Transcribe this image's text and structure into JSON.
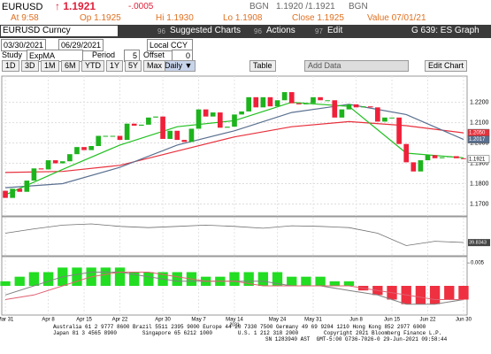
{
  "header": {
    "ticker": "EURUSD",
    "last": "↑ 1.1921",
    "change": "-.0005",
    "source1": "BGN",
    "bid_ask": "1.1920 /1.1921",
    "source2": "BGN",
    "time": "At 9:58",
    "open": "Op 1.1925",
    "high": "Hi 1.1930",
    "low": "Lo 1.1908",
    "close": "Close 1.1925",
    "value": "Value 07/01/21"
  },
  "toolbar": {
    "security": "EURUSD Curncy",
    "menu1_key": "96",
    "menu1": "Suggested Charts",
    "menu2_key": "96",
    "menu2": "Actions",
    "menu3_key": "97",
    "menu3": "Edit",
    "page": "G 639: ES Graph",
    "start_date": "03/30/2021",
    "end_date": "06/29/2021",
    "currency": "Local CCY",
    "study_label": "Study",
    "study": "ExpMA",
    "period_label": "Period",
    "period": "5",
    "offset_label": "Offset",
    "offset": "0",
    "ranges": [
      "1D",
      "3D",
      "1M",
      "6M",
      "YTD",
      "1Y",
      "5Y",
      "Max"
    ],
    "frequency": "Daily ▼",
    "table": "Table",
    "add_data": "Add Data",
    "edit_chart": "Edit Chart"
  },
  "chart_data": {
    "type": "candlestick",
    "categories": [
      "Mar 31",
      null,
      null,
      null,
      null,
      null,
      "Apr 8",
      null,
      null,
      null,
      null,
      "Apr 15",
      null,
      null,
      null,
      null,
      "Apr 22",
      null,
      null,
      null,
      null,
      null,
      "Apr 30",
      null,
      null,
      null,
      null,
      "May 7",
      null,
      null,
      null,
      null,
      "May 14",
      null,
      null,
      null,
      null,
      null,
      "May 24",
      null,
      null,
      null,
      null,
      "May 31",
      null,
      null,
      null,
      null,
      null,
      "Jun 8",
      null,
      null,
      null,
      null,
      "Jun 15",
      null,
      null,
      null,
      null,
      "Jun 22",
      null,
      null,
      null,
      null,
      "Jun 30"
    ],
    "year_label": "2021",
    "open": [
      1.1765,
      1.173,
      1.1775,
      1.176,
      1.1815,
      1.1875,
      1.187,
      1.1915,
      1.19,
      1.191,
      1.1945,
      1.198,
      1.1965,
      1.1985,
      1.2035,
      1.2035,
      1.2035,
      1.2015,
      1.2095,
      1.2085,
      1.209,
      1.2125,
      1.213,
      1.202,
      1.206,
      1.2015,
      1.2005,
      1.207,
      1.2165,
      1.213,
      1.215,
      1.2075,
      1.208,
      1.214,
      1.2155,
      1.2225,
      1.2175,
      1.2225,
      1.218,
      1.221,
      1.225,
      1.2195,
      1.219,
      1.2195,
      1.2225,
      1.221,
      1.221,
      1.2125,
      1.2165,
      1.219,
      1.2175,
      1.218,
      1.2175,
      1.2105,
      1.2125,
      1.2125,
      1.1995,
      1.1905,
      1.186,
      1.1915,
      1.194,
      1.1925,
      1.193,
      1.1935,
      1.1925
    ],
    "close": [
      1.173,
      1.1775,
      1.176,
      1.1815,
      1.1875,
      1.187,
      1.1915,
      1.19,
      1.191,
      1.1945,
      1.198,
      1.1965,
      1.1985,
      1.2035,
      1.2035,
      1.2035,
      1.2015,
      1.2095,
      1.2085,
      1.209,
      1.2125,
      1.213,
      1.202,
      1.206,
      1.2015,
      1.2005,
      1.207,
      1.2165,
      1.213,
      1.215,
      1.2075,
      1.208,
      1.214,
      1.2155,
      1.2225,
      1.2175,
      1.2225,
      1.218,
      1.221,
      1.225,
      1.2195,
      1.219,
      1.2195,
      1.2225,
      1.221,
      1.221,
      1.2125,
      1.2165,
      1.219,
      1.2175,
      1.218,
      1.2175,
      1.2105,
      1.2125,
      1.2125,
      1.1995,
      1.1905,
      1.186,
      1.1915,
      1.194,
      1.1925,
      1.193,
      1.1935,
      1.1925,
      1.1921
    ],
    "up_color": "#1db31d",
    "down_color": "#f0203a",
    "ylim": [
      1.165,
      1.232
    ],
    "yticks": [
      {
        "value": 1.17,
        "label": "1.1700"
      },
      {
        "value": 1.18,
        "label": "1.1800"
      },
      {
        "value": 1.19,
        "label": "1.1900"
      },
      {
        "value": 1.2,
        "label": "1.2000"
      },
      {
        "value": 1.21,
        "label": "1.2100"
      },
      {
        "value": 1.22,
        "label": "1.2200"
      }
    ],
    "grid": true,
    "series": [
      {
        "color": "#e8303c",
        "x": [
          0,
          8,
          16,
          24,
          32,
          40,
          48,
          56,
          64
        ],
        "values": [
          1.1855,
          1.186,
          1.189,
          1.196,
          1.203,
          1.208,
          1.2105,
          1.2085,
          1.205
        ]
      },
      {
        "color": "#5a7090",
        "x": [
          0,
          8,
          16,
          24,
          32,
          40,
          48,
          56,
          64
        ],
        "values": [
          1.178,
          1.18,
          1.188,
          1.199,
          1.206,
          1.215,
          1.219,
          1.214,
          1.2017
        ]
      },
      {
        "color": "#22c022",
        "x": [
          0,
          8,
          16,
          24,
          32,
          40,
          48,
          56,
          64
        ],
        "values": [
          1.1745,
          1.187,
          1.199,
          1.208,
          1.211,
          1.22,
          1.218,
          1.195,
          1.1927
        ]
      }
    ],
    "price_tags": [
      {
        "value": 1.205,
        "label": "1.2050",
        "color": "#e8303c"
      },
      {
        "value": 1.2017,
        "label": "1.2017",
        "color": "#5a7090"
      },
      {
        "value": 1.1921,
        "label": "1.1921",
        "color": "#ffffff"
      }
    ],
    "rsi": {
      "color": "#707070",
      "ylim": [
        20,
        80
      ],
      "x": [
        0,
        4,
        8,
        12,
        16,
        20,
        24,
        28,
        32,
        36,
        40,
        44,
        48,
        52,
        56,
        60,
        64
      ],
      "values": [
        55,
        62,
        68,
        70,
        66,
        64,
        66,
        68,
        66,
        63,
        67,
        66,
        64,
        55,
        35,
        42,
        40
      ],
      "tag": {
        "value": 39.8343,
        "label": "39.8343"
      }
    },
    "macd": {
      "ylim": [
        -0.006,
        0.006
      ],
      "yticks": [
        0.005
      ],
      "hist_x": [
        0,
        2,
        4,
        6,
        8,
        10,
        12,
        14,
        16,
        18,
        20,
        22,
        24,
        26,
        28,
        30,
        32,
        34,
        36,
        38,
        40,
        42,
        44,
        46,
        48,
        50,
        52,
        54,
        56,
        58,
        60,
        62,
        64
      ],
      "hist": [
        0.001,
        0.002,
        0.003,
        0.003,
        0.004,
        0.004,
        0.004,
        0.004,
        0.004,
        0.003,
        0.003,
        0.003,
        0.003,
        0.003,
        0.002,
        0.002,
        0.003,
        0.003,
        0.003,
        0.003,
        0.002,
        0.002,
        0.002,
        0.001,
        0.001,
        -0.001,
        -0.002,
        -0.003,
        -0.004,
        -0.004,
        -0.004,
        -0.003,
        -0.003
      ],
      "pos_color": "#22dd22",
      "neg_color": "#ee3040",
      "lines": [
        {
          "color": "#808080",
          "x": [
            0,
            4,
            8,
            12,
            16,
            20,
            24,
            28,
            32,
            36,
            40,
            44,
            48,
            52,
            56,
            60,
            64
          ],
          "values": [
            -0.002,
            0.0,
            0.002,
            0.003,
            0.003,
            0.002,
            0.001,
            0.001,
            0.001,
            0.001,
            0.0,
            0.0,
            -0.001,
            -0.002,
            -0.004,
            -0.004,
            -0.003
          ]
        },
        {
          "color": "#e06070",
          "x": [
            0,
            4,
            8,
            12,
            16,
            20,
            24,
            28,
            32,
            36,
            40,
            44,
            48,
            52,
            56,
            60,
            64
          ],
          "values": [
            -0.003,
            -0.002,
            0.0,
            0.002,
            0.003,
            0.003,
            0.002,
            0.001,
            0.001,
            0.0,
            0.0,
            0.0,
            0.0,
            -0.001,
            -0.002,
            -0.003,
            -0.003
          ]
        }
      ]
    }
  },
  "footer": {
    "lines": [
      "Australia 61 2 9777 8600 Brazil 5511 2395 9000 Europe 44 20 7330 7500 Germany 49 69 9204 1210 Hong Kong 852 2977 6000",
      "Japan 81 3 4565 8900        Singapore 65 6212 1000        U.S. 1 212 318 2000        Copyright 2021 Bloomberg Finance L.P.",
      "SN 1283940 AST  GMT-5:00 G736-7026-0 29-Jun-2021 09:58:44"
    ]
  }
}
